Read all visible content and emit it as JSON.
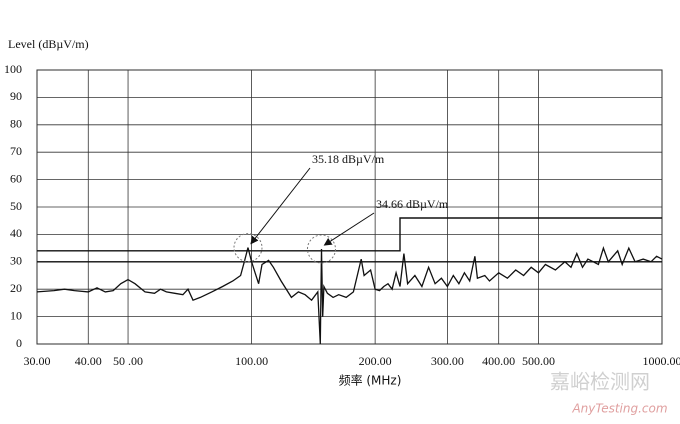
{
  "chart_data": {
    "type": "line",
    "y_label": "Level (dBµV/m)",
    "x_label": "频率 (MHz)",
    "log_x": true,
    "grid": true,
    "xlim": [
      30,
      1000
    ],
    "ylim": [
      0,
      100
    ],
    "xticks": [
      {
        "value": 30,
        "label": "30.00"
      },
      {
        "value": 40,
        "label": "40.00"
      },
      {
        "value": 50,
        "label": "50 .00"
      },
      {
        "value": 100,
        "label": "100.00"
      },
      {
        "value": 200,
        "label": "200.00"
      },
      {
        "value": 300,
        "label": "300.00"
      },
      {
        "value": 400,
        "label": "400.00"
      },
      {
        "value": 500,
        "label": "500.00"
      },
      {
        "value": 1000,
        "label": "1000.00"
      }
    ],
    "yticks": [
      0,
      10,
      20,
      30,
      40,
      50,
      60,
      70,
      80,
      90,
      100
    ],
    "series": [
      {
        "color": "#111111",
        "x": [
          30,
          33,
          35,
          37,
          40,
          42,
          44,
          46,
          48,
          50,
          52,
          55,
          58,
          60,
          62,
          65,
          68,
          70,
          72,
          75,
          80,
          85,
          90,
          94,
          96,
          98,
          100,
          102,
          104,
          106,
          110,
          113,
          118,
          125,
          130,
          135,
          140,
          145,
          147,
          148,
          149,
          150,
          153,
          158,
          163,
          170,
          177,
          185,
          188,
          195,
          200,
          205,
          210,
          215,
          220,
          225,
          230,
          235,
          240,
          250,
          260,
          270,
          280,
          290,
          300,
          310,
          320,
          330,
          340,
          350,
          355,
          370,
          380,
          400,
          420,
          440,
          460,
          480,
          500,
          520,
          550,
          580,
          600,
          620,
          640,
          660,
          700,
          720,
          740,
          780,
          800,
          830,
          860,
          900,
          940,
          970,
          1000
        ],
        "values": [
          19,
          19.5,
          20,
          19.5,
          19,
          20.5,
          19,
          19.5,
          22,
          23.5,
          22,
          19,
          18.5,
          20,
          19,
          18.5,
          18,
          20,
          16,
          17,
          19,
          21,
          23,
          25,
          30,
          35.18,
          30,
          26,
          22,
          29,
          30.5,
          28,
          23,
          17,
          19,
          18,
          16,
          19,
          0,
          34.66,
          10,
          21,
          18.5,
          17,
          18,
          17,
          19,
          31,
          25,
          27,
          20,
          19.5,
          21,
          22,
          20,
          26,
          21,
          33,
          22,
          25,
          21,
          28,
          22,
          24,
          21,
          25,
          22,
          26,
          23,
          32,
          24,
          25,
          23,
          26,
          24,
          27,
          25,
          28,
          26,
          29,
          27,
          30,
          28,
          33,
          28,
          31,
          29,
          35,
          30,
          34,
          29,
          35,
          30,
          31,
          30,
          32,
          31
        ]
      },
      {
        "color": "#111111",
        "x": [
          30,
          230,
          230,
          1000
        ],
        "values": [
          34,
          34,
          46,
          46
        ]
      },
      {
        "color": "#111111",
        "x": [
          30,
          1000
        ],
        "values": [
          30,
          30
        ]
      }
    ],
    "annotations": [
      {
        "label": "35.18 dBµV/m",
        "x": 98,
        "value": 35.18
      },
      {
        "label": "34.66 dBµV/m",
        "x": 148,
        "value": 34.66
      }
    ],
    "watermark": [
      "嘉峪检测网",
      "AnyTesting.com"
    ]
  }
}
